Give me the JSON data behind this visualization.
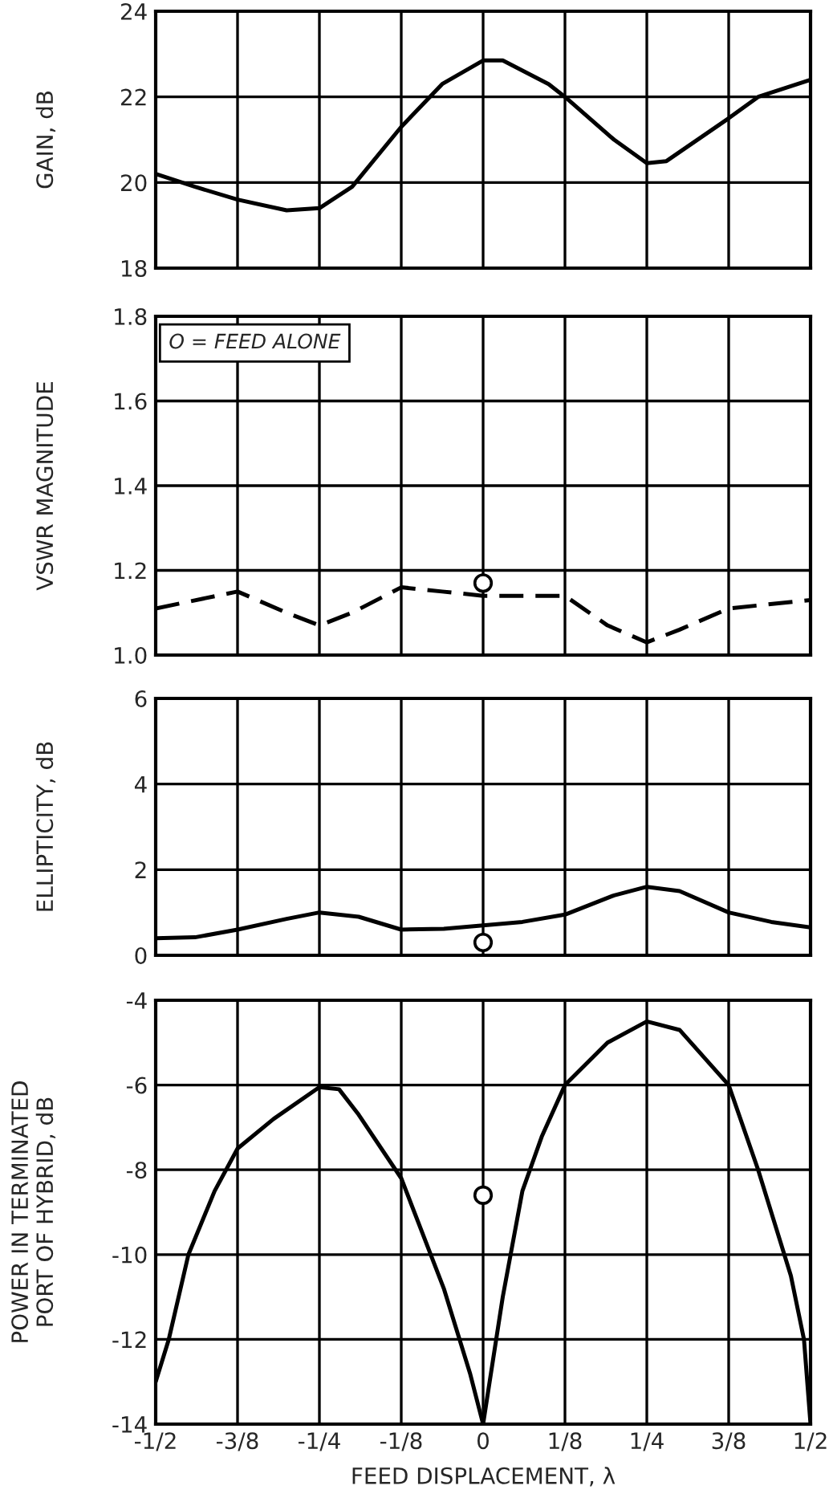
{
  "chart_data": [
    {
      "type": "line",
      "ylabel": "GAIN, dB",
      "xlim": [
        -0.5,
        0.5
      ],
      "xticks": [
        {
          "value": -0.5,
          "label": null
        },
        {
          "value": -0.375,
          "label": null
        },
        {
          "value": -0.25,
          "label": null
        },
        {
          "value": -0.125,
          "label": null
        },
        {
          "value": 0,
          "label": null
        },
        {
          "value": 0.125,
          "label": null
        },
        {
          "value": 0.25,
          "label": null
        },
        {
          "value": 0.375,
          "label": null
        },
        {
          "value": 0.5,
          "label": null
        }
      ],
      "ylim": [
        18,
        24
      ],
      "yticks": [
        18,
        20,
        22,
        24
      ],
      "tick_labels": "y",
      "grid": true,
      "line_style": "solid",
      "series": [
        {
          "color": "#000000",
          "x": [
            -0.5,
            -0.44,
            -0.375,
            -0.3,
            -0.25,
            -0.2,
            -0.125,
            -0.0625,
            0,
            0.03,
            0.1,
            0.125,
            0.2,
            0.25,
            0.28,
            0.375,
            0.42,
            0.5
          ],
          "values": [
            20.2,
            19.9,
            19.6,
            19.35,
            19.4,
            19.9,
            21.3,
            22.3,
            22.85,
            22.85,
            22.3,
            22.0,
            21.0,
            20.45,
            20.5,
            21.5,
            22.0,
            22.4
          ]
        }
      ]
    },
    {
      "type": "line",
      "ylabel": "VSWR MAGNITUDE",
      "xlim": [
        -0.5,
        0.5
      ],
      "xticks": [
        {
          "value": -0.5,
          "label": null
        },
        {
          "value": -0.375,
          "label": null
        },
        {
          "value": -0.25,
          "label": null
        },
        {
          "value": -0.125,
          "label": null
        },
        {
          "value": 0,
          "label": null
        },
        {
          "value": 0.125,
          "label": null
        },
        {
          "value": 0.25,
          "label": null
        },
        {
          "value": 0.375,
          "label": null
        },
        {
          "value": 0.5,
          "label": null
        }
      ],
      "ylim": [
        1.0,
        1.8
      ],
      "yticks": [
        {
          "value": 1.0,
          "label": "1.0"
        },
        1.2,
        1.4,
        1.6,
        1.8
      ],
      "tick_labels": "y",
      "grid": true,
      "line_style": "dashed",
      "annotations": [
        "O = FEED ALONE"
      ],
      "series": [
        {
          "color": "#000000",
          "x": [
            -0.5,
            -0.375,
            -0.3,
            -0.25,
            -0.2,
            -0.125,
            -0.0625,
            0,
            0.125,
            0.19,
            0.25,
            0.3,
            0.375,
            0.5
          ],
          "values": [
            1.11,
            1.15,
            1.1,
            1.07,
            1.1,
            1.16,
            1.15,
            1.14,
            1.14,
            1.07,
            1.03,
            1.06,
            1.11,
            1.13
          ]
        },
        {
          "type": "scatter",
          "marker": "circle",
          "color": "#000000",
          "x": [
            0
          ],
          "values": [
            1.17
          ]
        }
      ]
    },
    {
      "type": "line",
      "ylabel": "ELLIPTICITY, dB",
      "xlim": [
        -0.5,
        0.5
      ],
      "xticks": [
        {
          "value": -0.5,
          "label": null
        },
        {
          "value": -0.375,
          "label": null
        },
        {
          "value": -0.25,
          "label": null
        },
        {
          "value": -0.125,
          "label": null
        },
        {
          "value": 0,
          "label": null
        },
        {
          "value": 0.125,
          "label": null
        },
        {
          "value": 0.25,
          "label": null
        },
        {
          "value": 0.375,
          "label": null
        },
        {
          "value": 0.5,
          "label": null
        }
      ],
      "ylim": [
        0,
        6
      ],
      "yticks": [
        0,
        2,
        4,
        6
      ],
      "tick_labels": "y",
      "grid": true,
      "line_style": "solid",
      "series": [
        {
          "color": "#000000",
          "x": [
            -0.5,
            -0.44,
            -0.375,
            -0.3,
            -0.25,
            -0.19,
            -0.125,
            -0.06,
            0,
            0.06,
            0.125,
            0.2,
            0.25,
            0.3,
            0.375,
            0.44,
            0.5
          ],
          "values": [
            0.4,
            0.42,
            0.6,
            0.85,
            1.0,
            0.9,
            0.6,
            0.62,
            0.7,
            0.78,
            0.95,
            1.4,
            1.6,
            1.5,
            1.0,
            0.78,
            0.65
          ]
        },
        {
          "type": "scatter",
          "marker": "circle",
          "color": "#000000",
          "x": [
            0
          ],
          "values": [
            0.3
          ]
        }
      ]
    },
    {
      "type": "line",
      "ylabel": "POWER IN TERMINATED\nPORT OF HYBRID, dB",
      "xlabel": "FEED DISPLACEMENT, λ",
      "xlim": [
        -0.5,
        0.5
      ],
      "xticks": [
        {
          "value": -0.5,
          "label": "-1/2"
        },
        {
          "value": -0.375,
          "label": "-3/8"
        },
        {
          "value": -0.25,
          "label": "-1/4"
        },
        {
          "value": -0.125,
          "label": "-1/8"
        },
        0,
        {
          "value": 0.125,
          "label": "1/8"
        },
        {
          "value": 0.25,
          "label": "1/4"
        },
        {
          "value": 0.375,
          "label": "3/8"
        },
        {
          "value": 0.5,
          "label": "1/2"
        }
      ],
      "ylim": [
        -14,
        -4
      ],
      "yticks": [
        -14,
        -12,
        -10,
        -8,
        -6,
        -4
      ],
      "grid": true,
      "line_style": "solid",
      "series": [
        {
          "color": "#000000",
          "x": [
            -0.5,
            -0.48,
            -0.45,
            -0.41,
            -0.375,
            -0.32,
            -0.25,
            -0.22,
            -0.19,
            -0.125,
            -0.06,
            -0.02,
            0,
            0.01,
            0.03,
            0.06,
            0.09,
            0.125,
            0.19,
            0.25,
            0.3,
            0.375,
            0.42,
            0.47,
            0.49,
            0.5
          ],
          "values": [
            -13,
            -12,
            -10,
            -8.5,
            -7.5,
            -6.8,
            -6.05,
            -6.1,
            -6.7,
            -8.2,
            -10.8,
            -12.8,
            -14,
            -13,
            -11,
            -8.5,
            -7.2,
            -6,
            -5,
            -4.5,
            -4.7,
            -6,
            -8,
            -10.5,
            -12,
            -14
          ]
        },
        {
          "type": "scatter",
          "marker": "circle",
          "color": "#000000",
          "x": [
            0
          ],
          "values": [
            -8.6
          ]
        }
      ]
    }
  ]
}
